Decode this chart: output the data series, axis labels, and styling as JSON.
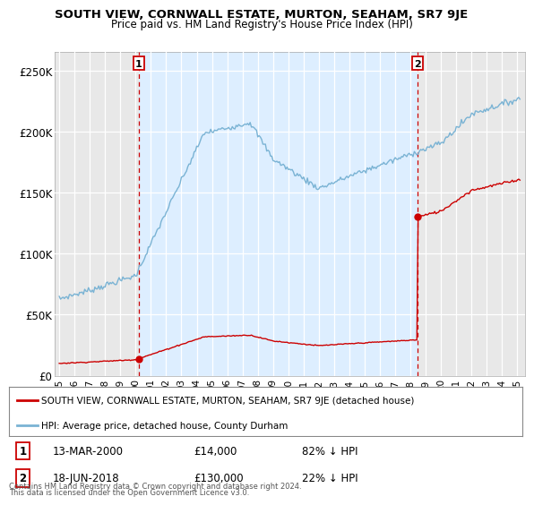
{
  "title": "SOUTH VIEW, CORNWALL ESTATE, MURTON, SEAHAM, SR7 9JE",
  "subtitle": "Price paid vs. HM Land Registry's House Price Index (HPI)",
  "ylabel_ticks": [
    "£0",
    "£50K",
    "£100K",
    "£150K",
    "£200K",
    "£250K"
  ],
  "ytick_values": [
    0,
    50000,
    100000,
    150000,
    200000,
    250000
  ],
  "ylim": [
    0,
    265000
  ],
  "sale1_year": 2000.205,
  "sale1_price": 14000,
  "sale1_label": "13-MAR-2000",
  "sale1_pct": "82% ↓ HPI",
  "sale2_year": 2018.46,
  "sale2_price": 130000,
  "sale2_label": "18-JUN-2018",
  "sale2_pct": "22% ↓ HPI",
  "red_color": "#cc0000",
  "blue_color": "#7ab3d4",
  "shade_color": "#ddeeff",
  "bg_color": "#f5f5f5",
  "legend_label_red": "SOUTH VIEW, CORNWALL ESTATE, MURTON, SEAHAM, SR7 9JE (detached house)",
  "legend_label_blue": "HPI: Average price, detached house, County Durham",
  "footer1": "Contains HM Land Registry data © Crown copyright and database right 2024.",
  "footer2": "This data is licensed under the Open Government Licence v3.0.",
  "xtick_years": [
    1995,
    1996,
    1997,
    1998,
    1999,
    2000,
    2001,
    2002,
    2003,
    2004,
    2005,
    2006,
    2007,
    2008,
    2009,
    2010,
    2011,
    2012,
    2013,
    2014,
    2015,
    2016,
    2017,
    2018,
    2019,
    2020,
    2021,
    2022,
    2023,
    2024,
    2025
  ],
  "xmin": 1994.7,
  "xmax": 2025.5
}
